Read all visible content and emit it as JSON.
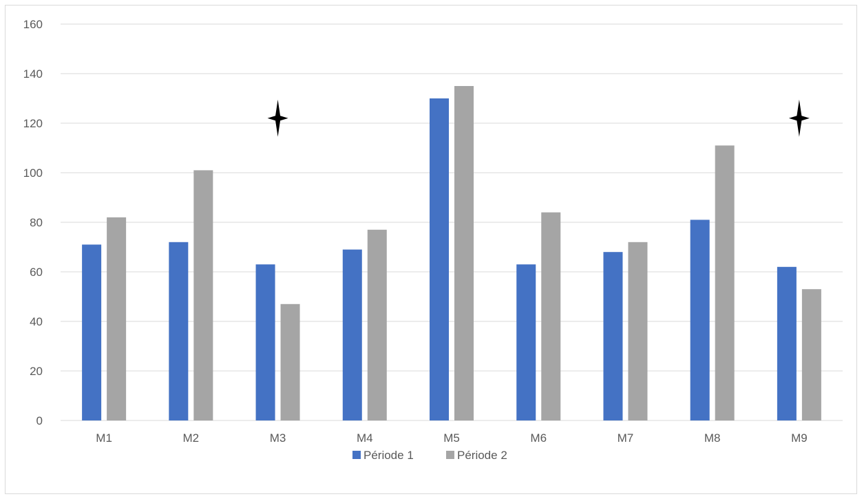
{
  "chart_data": {
    "type": "bar",
    "categories": [
      "M1",
      "M2",
      "M3",
      "M4",
      "M5",
      "M6",
      "M7",
      "M8",
      "M9"
    ],
    "series": [
      {
        "name": "Période 1",
        "color": "#4472c4",
        "values": [
          71,
          72,
          63,
          69,
          130,
          63,
          68,
          81,
          62
        ]
      },
      {
        "name": "Période 2",
        "color": "#a5a5a5",
        "values": [
          82,
          101,
          47,
          77,
          135,
          84,
          72,
          111,
          53
        ]
      }
    ],
    "ylim": [
      0,
      160
    ],
    "yticks": [
      0,
      20,
      40,
      60,
      80,
      100,
      120,
      140,
      160
    ],
    "grid": true,
    "legend": "bottom",
    "annotations": [
      {
        "symbol": "four-point-star",
        "category": "M3",
        "y": 122
      },
      {
        "symbol": "four-point-star",
        "category": "M9",
        "y": 122
      }
    ]
  }
}
